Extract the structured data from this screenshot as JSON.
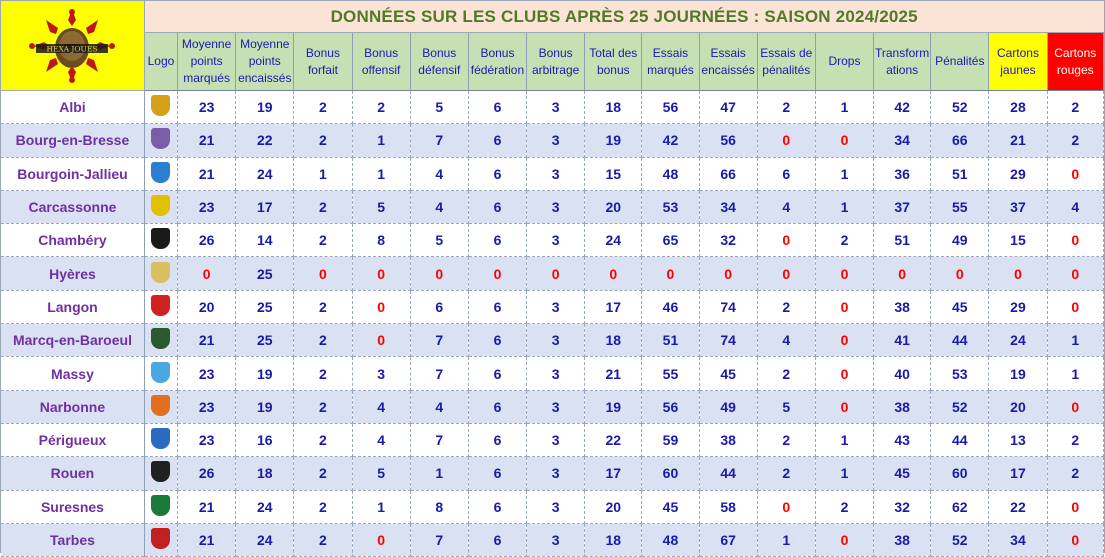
{
  "title": "DONNÉES SUR LES CLUBS APRÈS 25 JOURNÉES : SAISON 2024/2025",
  "header_logo_text": "HEXA JOUES",
  "columns": [
    "Logo",
    "Moyenne points marqués",
    "Moyenne points encaissés",
    "Bonus forfait",
    "Bonus offensif",
    "Bonus défensif",
    "Bonus fédération",
    "Bonus arbitrage",
    "Total des bonus",
    "Essais marqués",
    "Essais encaissés",
    "Essais de pénalités",
    "Drops",
    "Transform ations",
    "Pénalités",
    "Cartons jaunes",
    "Cartons rouges"
  ],
  "colors": {
    "title_bg": "#fbe4d5",
    "title_text": "#4f7a28",
    "header_bg": "#c6e0b4",
    "stripe": "#d9e1f2",
    "club_text": "#7030a0",
    "value_text": "#1a1aa8",
    "zero_text": "#ff0000",
    "yellow_card": "#ffff00",
    "red_card": "#ff0000"
  },
  "rows": [
    {
      "club": "Albi",
      "logo_icon": "albi-logo-icon",
      "badge": "#d4a017",
      "values": [
        "23",
        "19",
        "2",
        "2",
        "5",
        "6",
        "3",
        "18",
        "56",
        "47",
        "2",
        "1",
        "42",
        "52",
        "28",
        "2"
      ]
    },
    {
      "club": "Bourg-en-Bresse",
      "logo_icon": "bourg-logo-icon",
      "badge": "#7b5ca8",
      "values": [
        "21",
        "22",
        "2",
        "1",
        "7",
        "6",
        "3",
        "19",
        "42",
        "56",
        "0",
        "0",
        "34",
        "66",
        "21",
        "2"
      ]
    },
    {
      "club": "Bourgoin-Jallieu",
      "logo_icon": "csbj-logo-icon",
      "badge": "#2a7fd0",
      "values": [
        "21",
        "24",
        "1",
        "1",
        "4",
        "6",
        "3",
        "15",
        "48",
        "66",
        "6",
        "1",
        "36",
        "51",
        "29",
        "0"
      ]
    },
    {
      "club": "Carcassonne",
      "logo_icon": "carcassonne-logo-icon",
      "badge": "#e1c000",
      "values": [
        "23",
        "17",
        "2",
        "5",
        "4",
        "6",
        "3",
        "20",
        "53",
        "34",
        "4",
        "1",
        "37",
        "55",
        "37",
        "4"
      ]
    },
    {
      "club": "Chambéry",
      "logo_icon": "chambery-logo-icon",
      "badge": "#1a1a1a",
      "values": [
        "26",
        "14",
        "2",
        "8",
        "5",
        "6",
        "3",
        "24",
        "65",
        "32",
        "0",
        "2",
        "51",
        "49",
        "15",
        "0"
      ]
    },
    {
      "club": "Hyères",
      "logo_icon": "hyeres-logo-icon",
      "badge": "#d8c060",
      "values": [
        "0",
        "25",
        "0",
        "0",
        "0",
        "0",
        "0",
        "0",
        "0",
        "0",
        "0",
        "0",
        "0",
        "0",
        "0",
        "0"
      ]
    },
    {
      "club": "Langon",
      "logo_icon": "langon-logo-icon",
      "badge": "#d02020",
      "values": [
        "20",
        "25",
        "2",
        "0",
        "6",
        "6",
        "3",
        "17",
        "46",
        "74",
        "2",
        "0",
        "38",
        "45",
        "29",
        "0"
      ]
    },
    {
      "club": "Marcq-en-Baroeul",
      "logo_icon": "marcq-logo-icon",
      "badge": "#2a5a2a",
      "values": [
        "21",
        "25",
        "2",
        "0",
        "7",
        "6",
        "3",
        "18",
        "51",
        "74",
        "4",
        "0",
        "41",
        "44",
        "24",
        "1"
      ]
    },
    {
      "club": "Massy",
      "logo_icon": "massy-logo-icon",
      "badge": "#4aa8e0",
      "values": [
        "23",
        "19",
        "2",
        "3",
        "7",
        "6",
        "3",
        "21",
        "55",
        "45",
        "2",
        "0",
        "40",
        "53",
        "19",
        "1"
      ]
    },
    {
      "club": "Narbonne",
      "logo_icon": "narbonne-logo-icon",
      "badge": "#e07020",
      "values": [
        "23",
        "19",
        "2",
        "4",
        "4",
        "6",
        "3",
        "19",
        "56",
        "49",
        "5",
        "0",
        "38",
        "52",
        "20",
        "0"
      ]
    },
    {
      "club": "Périgueux",
      "logo_icon": "cap-logo-icon",
      "badge": "#2a6ac0",
      "values": [
        "23",
        "16",
        "2",
        "4",
        "7",
        "6",
        "3",
        "22",
        "59",
        "38",
        "2",
        "1",
        "43",
        "44",
        "13",
        "2"
      ]
    },
    {
      "club": "Rouen",
      "logo_icon": "rouen-logo-icon",
      "badge": "#202020",
      "values": [
        "26",
        "18",
        "2",
        "5",
        "1",
        "6",
        "3",
        "17",
        "60",
        "44",
        "2",
        "1",
        "45",
        "60",
        "17",
        "2"
      ]
    },
    {
      "club": "Suresnes",
      "logo_icon": "suresnes-logo-icon",
      "badge": "#1a7a3a",
      "values": [
        "21",
        "24",
        "2",
        "1",
        "8",
        "6",
        "3",
        "20",
        "45",
        "58",
        "0",
        "2",
        "32",
        "62",
        "22",
        "0"
      ]
    },
    {
      "club": "Tarbes",
      "logo_icon": "tarbes-logo-icon",
      "badge": "#c02020",
      "values": [
        "21",
        "24",
        "2",
        "0",
        "7",
        "6",
        "3",
        "18",
        "48",
        "67",
        "1",
        "0",
        "38",
        "52",
        "34",
        "0"
      ]
    }
  ]
}
